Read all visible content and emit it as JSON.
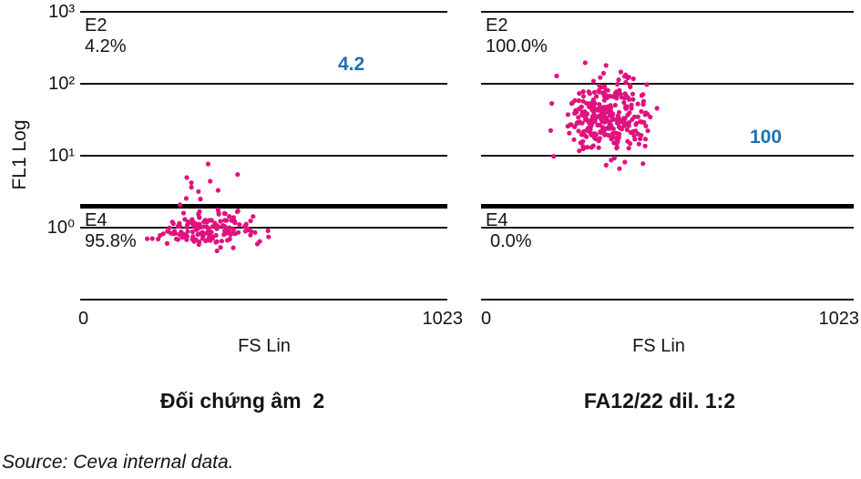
{
  "colors": {
    "dot": "#E0127E",
    "callout": "#1C70B8",
    "line": "#141414",
    "text": "#141414"
  },
  "y_axis": {
    "label": "FL1 Log",
    "ticks": [
      "10³",
      "10²",
      "10¹",
      "10⁰"
    ]
  },
  "plots": [
    {
      "title": "Đối chứng âm  2",
      "x_axis": {
        "label": "FS Lin",
        "min": "0",
        "max": "1023"
      },
      "gates": {
        "upper_name": "E2",
        "upper_pct": "4.2%",
        "lower_name": "E4",
        "lower_pct": "95.8%"
      },
      "callout": "4.2"
    },
    {
      "title": "FA12/22 dil. 1:2",
      "x_axis": {
        "label": "FS Lin",
        "min": "0",
        "max": "1023"
      },
      "gates": {
        "upper_name": "E2",
        "upper_pct": "100.0%",
        "lower_name": "E4",
        "lower_pct": "0.0%"
      },
      "callout": "100"
    }
  ],
  "chart_data": {
    "type": "scatter",
    "description": "Two flow-cytometry dot plots (FL1 Log vs FS Lin, x linear 0-1023, y log10 over 4 decades 10^-1..10^3). Thick horizontal line = gate threshold at ~FL1 2. Gates: E2 above threshold, E4 below.",
    "x_range": [
      0,
      1023
    ],
    "y_scale": "log10",
    "y_decades": [
      -1,
      3
    ],
    "gate_threshold_fl1": 2.0,
    "plots": [
      {
        "name": "Đối chứng âm 2",
        "gate_E2_pct": 4.2,
        "gate_E4_pct": 95.8,
        "callout_value": 4.2,
        "seed": 42,
        "clusters": [
          {
            "count": 145,
            "fs_mean": 350,
            "fs_sd": 72,
            "fl1_log_mean": -0.04,
            "fl1_log_sd": 0.115,
            "trunc": 2.6
          },
          {
            "count": 18,
            "fs_mean": 380,
            "fs_sd": 95,
            "fl1_log_mean": 0.55,
            "fl1_log_sd": 0.38,
            "trunc": 2.4
          }
        ]
      },
      {
        "name": "FA12/22 dil. 1:2",
        "gate_E2_pct": 100.0,
        "gate_E4_pct": 0.0,
        "callout_value": 100,
        "seed": 77,
        "clusters": [
          {
            "count": 300,
            "fs_mean": 348,
            "fs_sd": 57,
            "fl1_log_mean": 1.52,
            "fl1_log_sd": 0.3,
            "trunc": 2.8
          }
        ]
      }
    ]
  },
  "source_note": "Source: Ceva internal data."
}
